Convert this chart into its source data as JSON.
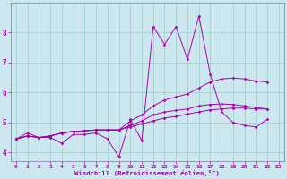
{
  "xlabel": "Windchill (Refroidissement éolien,°C)",
  "bg_color": "#cce8ee",
  "line_color": "#aa00aa",
  "grid_color": "#99cccc",
  "xlim": [
    -0.5,
    23.5
  ],
  "ylim": [
    3.7,
    9.0
  ],
  "xticks": [
    0,
    1,
    2,
    3,
    4,
    5,
    6,
    7,
    8,
    9,
    10,
    11,
    12,
    13,
    14,
    15,
    16,
    17,
    18,
    19,
    20,
    21,
    22,
    23
  ],
  "yticks": [
    4,
    5,
    6,
    7,
    8
  ],
  "series": [
    [
      4.45,
      4.65,
      4.5,
      4.5,
      4.3,
      4.6,
      4.6,
      4.65,
      4.45,
      3.85,
      5.1,
      4.4,
      8.2,
      7.6,
      8.2,
      7.1,
      8.55,
      6.6,
      5.35,
      5.0,
      4.9,
      4.85,
      5.1
    ],
    [
      4.45,
      4.55,
      4.5,
      4.55,
      4.65,
      4.7,
      4.72,
      4.75,
      4.75,
      4.75,
      4.85,
      4.95,
      5.05,
      5.15,
      5.2,
      5.28,
      5.35,
      5.42,
      5.45,
      5.48,
      5.48,
      5.45,
      5.45
    ],
    [
      4.45,
      4.55,
      4.5,
      4.55,
      4.65,
      4.7,
      4.72,
      4.75,
      4.75,
      4.75,
      5.05,
      5.25,
      5.55,
      5.75,
      5.85,
      5.95,
      6.15,
      6.35,
      6.45,
      6.48,
      6.45,
      6.38,
      6.35
    ],
    [
      4.45,
      4.55,
      4.5,
      4.55,
      4.65,
      4.7,
      4.72,
      4.75,
      4.75,
      4.75,
      4.9,
      5.05,
      5.25,
      5.35,
      5.4,
      5.45,
      5.55,
      5.6,
      5.62,
      5.6,
      5.55,
      5.5,
      5.45
    ]
  ],
  "x_series": [
    0,
    1,
    2,
    3,
    4,
    5,
    6,
    7,
    8,
    9,
    10,
    11,
    12,
    13,
    14,
    15,
    16,
    17,
    18,
    19,
    20,
    21,
    22
  ]
}
